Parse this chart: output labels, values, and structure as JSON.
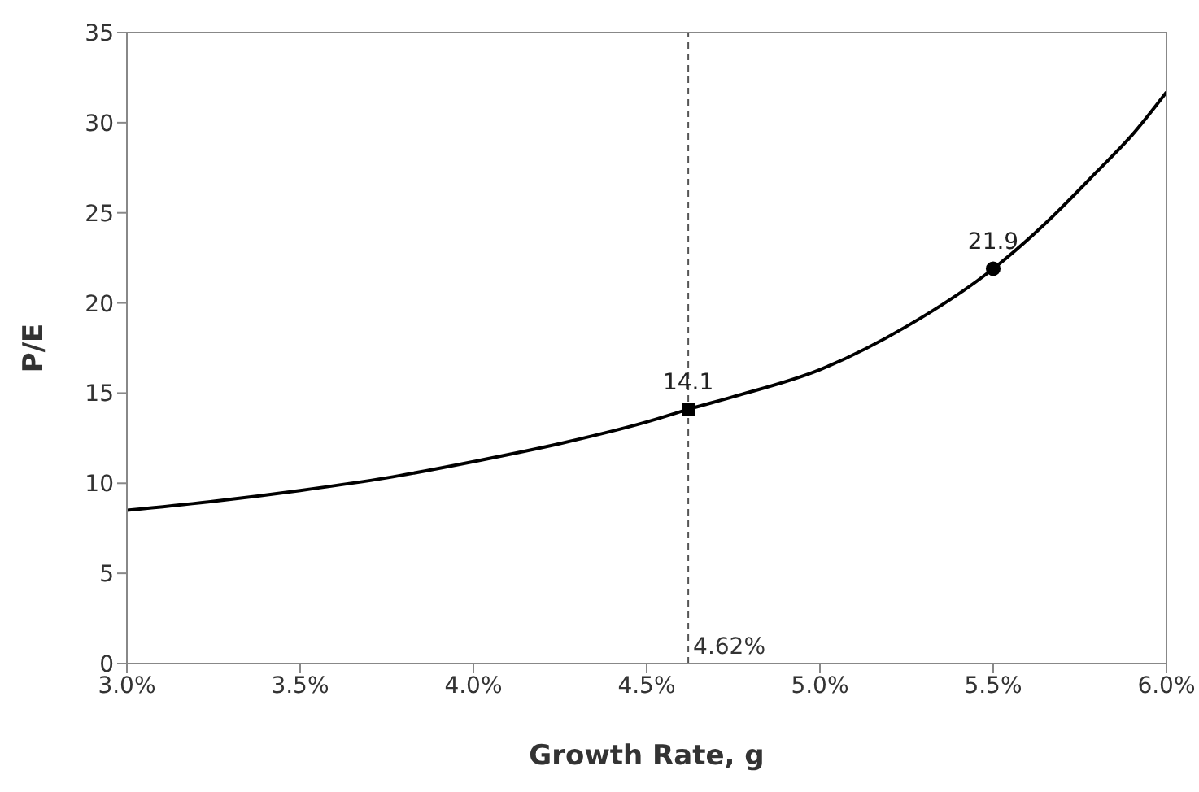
{
  "chart_data": {
    "type": "line",
    "xlabel": "Growth Rate, g",
    "ylabel": "P/E",
    "xlim": [
      3.0,
      6.0
    ],
    "xticks": [
      {
        "value": 3.0,
        "label": "3.0%"
      },
      {
        "value": 3.5,
        "label": "3.5%"
      },
      {
        "value": 4.0,
        "label": "4.0%"
      },
      {
        "value": 4.5,
        "label": "4.5%"
      },
      {
        "value": 5.0,
        "label": "5.0%"
      },
      {
        "value": 5.5,
        "label": "5.5%"
      },
      {
        "value": 6.0,
        "label": "6.0%"
      }
    ],
    "ylim": [
      0,
      35
    ],
    "yticks": [
      0,
      5,
      10,
      15,
      20,
      25,
      30,
      35
    ],
    "grid": false,
    "series": [
      {
        "color": "#000000",
        "marker": "none",
        "line_style": "solid",
        "x": [
          3.0,
          3.25,
          3.5,
          3.75,
          4.0,
          4.25,
          4.5,
          4.62,
          4.75,
          5.0,
          5.25,
          5.5,
          5.65,
          5.8,
          5.9,
          6.0
        ],
        "values": [
          8.5,
          9.0,
          9.6,
          10.3,
          11.2,
          12.2,
          13.4,
          14.1,
          14.8,
          16.3,
          18.7,
          21.9,
          24.4,
          27.3,
          29.3,
          31.7
        ]
      },
      {
        "type": "scatter",
        "color": "#000000",
        "marker": "square",
        "x": [
          4.62
        ],
        "values": [
          14.1
        ]
      },
      {
        "type": "scatter",
        "color": "#000000",
        "marker": "circle",
        "x": [
          5.5
        ],
        "values": [
          21.9
        ]
      }
    ],
    "ref_lines": [
      {
        "axis": "x",
        "value": 4.62,
        "label": "4.62%",
        "line_style": "dashed",
        "color": "#555555"
      }
    ],
    "annotations": [
      {
        "text": "14.1",
        "x": 4.62,
        "y": 14.1
      },
      {
        "text": "21.9",
        "x": 5.5,
        "y": 21.9
      }
    ]
  }
}
